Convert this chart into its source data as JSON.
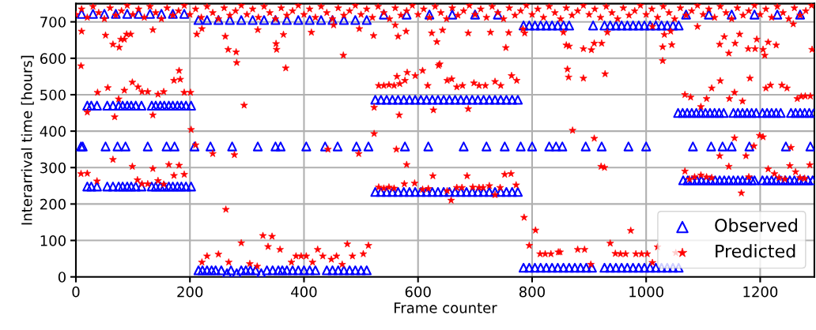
{
  "chart_data": {
    "type": "scatter",
    "xlabel": "Frame counter",
    "ylabel": "Interarrival time [hours]",
    "xlim": [
      0,
      1295
    ],
    "ylim": [
      0,
      750
    ],
    "xticks": [
      0,
      200,
      400,
      600,
      800,
      1000,
      1200
    ],
    "yticks": [
      0,
      100,
      200,
      300,
      400,
      500,
      600,
      700
    ],
    "grid": true,
    "legend": "bottom right",
    "series": [
      {
        "name": "Observed",
        "color": "#0000ff",
        "marker": "triangle",
        "x": [
          20,
          27,
          37,
          55,
          65,
          75,
          82,
          90,
          97,
          105,
          115,
          133,
          140,
          148,
          155,
          163,
          170,
          178,
          185,
          193,
          202,
          20,
          27,
          37,
          55,
          65,
          75,
          82,
          90,
          97,
          105,
          115,
          133,
          140,
          148,
          155,
          163,
          170,
          178,
          185,
          193,
          202,
          9,
          12,
          52,
          73,
          87,
          126,
          159,
          173,
          208,
          236,
          274,
          319,
          350,
          359,
          404,
          437,
          459,
          492,
          513,
          10,
          30,
          50,
          70,
          90,
          110,
          130,
          150,
          170,
          190,
          215,
          230,
          250,
          270,
          290,
          310,
          330,
          350,
          370,
          390,
          410,
          430,
          450,
          470,
          490,
          510,
          215,
          222,
          230,
          238,
          245,
          255,
          265,
          272,
          282,
          290,
          298,
          306,
          315,
          325,
          335,
          345,
          355,
          362,
          370,
          380,
          390,
          400,
          410,
          420,
          440,
          450,
          460,
          470,
          480,
          490,
          500,
          510,
          525,
          535,
          545,
          555,
          565,
          575,
          585,
          595,
          605,
          615,
          625,
          635,
          645,
          655,
          665,
          675,
          685,
          695,
          705,
          715,
          725,
          735,
          745,
          755,
          765,
          775,
          525,
          535,
          545,
          555,
          565,
          575,
          585,
          595,
          605,
          615,
          625,
          635,
          645,
          655,
          665,
          675,
          685,
          695,
          705,
          715,
          725,
          735,
          745,
          755,
          765,
          775,
          577,
          618,
          680,
          720,
          752,
          780,
          800,
          830,
          842,
          853,
          894,
          922,
          969,
          1000,
          540,
          580,
          620,
          660,
          700,
          740,
          785,
          795,
          805,
          815,
          825,
          835,
          845,
          855,
          865,
          907,
          927,
          937,
          947,
          957,
          967,
          977,
          987,
          997,
          1007,
          1017,
          1027,
          1037,
          1047,
          1057,
          785,
          795,
          805,
          815,
          825,
          835,
          845,
          855,
          865,
          875,
          885,
          895,
          905,
          927,
          937,
          947,
          957,
          967,
          977,
          987,
          997,
          1007,
          1017,
          1027,
          1037,
          1047,
          1057,
          1056,
          1064,
          1072,
          1080,
          1088,
          1096,
          1104,
          1112,
          1120,
          1128,
          1136,
          1153,
          1161,
          1169,
          1177,
          1185,
          1193,
          1204,
          1212,
          1220,
          1228,
          1236,
          1254,
          1262,
          1270,
          1278,
          1286,
          1294,
          1065,
          1073,
          1081,
          1089,
          1097,
          1105,
          1113,
          1121,
          1129,
          1137,
          1145,
          1153,
          1161,
          1169,
          1177,
          1185,
          1190,
          1204,
          1212,
          1220,
          1228,
          1236,
          1244,
          1252,
          1260,
          1268,
          1276,
          1284,
          1292,
          1082,
          1114,
          1134,
          1150,
          1181,
          1245,
          1288,
          1070,
          1110,
          1150,
          1190,
          1230,
          1270
        ],
        "values": [
          470,
          470,
          470,
          470,
          470,
          470,
          470,
          470,
          470,
          470,
          470,
          470,
          470,
          470,
          470,
          470,
          470,
          470,
          470,
          470,
          470,
          248,
          248,
          248,
          248,
          248,
          248,
          248,
          248,
          248,
          248,
          248,
          248,
          248,
          248,
          248,
          248,
          248,
          248,
          248,
          248,
          248,
          358,
          358,
          358,
          358,
          358,
          358,
          358,
          358,
          358,
          358,
          358,
          358,
          358,
          358,
          358,
          358,
          358,
          358,
          358,
          722,
          722,
          722,
          722,
          722,
          722,
          722,
          722,
          722,
          722,
          705,
          705,
          705,
          705,
          705,
          705,
          705,
          705,
          705,
          705,
          705,
          705,
          705,
          705,
          705,
          705,
          18,
          18,
          18,
          18,
          18,
          18,
          10,
          18,
          10,
          18,
          18,
          18,
          18,
          10,
          18,
          18,
          18,
          18,
          18,
          18,
          18,
          18,
          18,
          18,
          18,
          18,
          18,
          18,
          18,
          18,
          18,
          18,
          486,
          486,
          486,
          486,
          486,
          486,
          486,
          486,
          486,
          486,
          486,
          486,
          486,
          486,
          486,
          486,
          486,
          486,
          486,
          486,
          486,
          486,
          486,
          486,
          486,
          486,
          233,
          233,
          233,
          233,
          233,
          233,
          233,
          233,
          233,
          233,
          233,
          233,
          233,
          233,
          233,
          233,
          233,
          233,
          233,
          233,
          233,
          233,
          233,
          233,
          233,
          233,
          358,
          358,
          358,
          358,
          358,
          358,
          358,
          358,
          358,
          358,
          358,
          358,
          358,
          358,
          720,
          720,
          720,
          720,
          720,
          720,
          690,
          690,
          690,
          690,
          690,
          690,
          690,
          690,
          690,
          690,
          690,
          690,
          690,
          690,
          690,
          690,
          690,
          690,
          690,
          690,
          690,
          690,
          690,
          690,
          25,
          25,
          25,
          25,
          25,
          25,
          25,
          25,
          25,
          25,
          25,
          25,
          25,
          25,
          25,
          25,
          25,
          25,
          25,
          25,
          25,
          25,
          25,
          25,
          25,
          25,
          25,
          450,
          450,
          450,
          450,
          450,
          450,
          450,
          450,
          450,
          450,
          450,
          450,
          450,
          450,
          450,
          450,
          450,
          450,
          450,
          450,
          450,
          450,
          450,
          450,
          450,
          450,
          450,
          450,
          265,
          265,
          265,
          265,
          265,
          265,
          265,
          265,
          265,
          265,
          265,
          265,
          265,
          265,
          265,
          265,
          265,
          265,
          265,
          265,
          265,
          265,
          265,
          265,
          265,
          265,
          265,
          265,
          265,
          358,
          358,
          358,
          358,
          358,
          358,
          358,
          720,
          720,
          720,
          720,
          720,
          720
        ]
      },
      {
        "name": "Predicted",
        "color": "#ff0000",
        "marker": "star",
        "x": [
          0,
          10,
          20,
          30,
          40,
          50,
          60,
          70,
          80,
          90,
          100,
          110,
          120,
          130,
          140,
          150,
          160,
          170,
          180,
          190,
          200,
          210,
          220,
          230,
          240,
          250,
          260,
          270,
          280,
          290,
          300,
          310,
          320,
          330,
          340,
          350,
          360,
          370,
          380,
          390,
          400,
          410,
          420,
          430,
          440,
          450,
          460,
          470,
          480,
          490,
          500,
          510,
          520,
          530,
          540,
          550,
          560,
          570,
          580,
          590,
          600,
          610,
          620,
          630,
          640,
          650,
          660,
          670,
          680,
          690,
          700,
          710,
          720,
          730,
          740,
          750,
          760,
          770,
          780,
          790,
          800,
          810,
          820,
          830,
          840,
          850,
          860,
          870,
          880,
          890,
          900,
          910,
          920,
          930,
          940,
          950,
          960,
          970,
          980,
          990,
          1000,
          1010,
          1020,
          1030,
          1040,
          1050,
          1060,
          1070,
          1080,
          1090,
          1100,
          1110,
          1120,
          1130,
          1140,
          1150,
          1160,
          1170,
          1180,
          1190,
          1200,
          1210,
          1220,
          1230,
          1240,
          1250,
          1260,
          1270,
          1280,
          1290,
          10,
          9,
          9,
          20,
          20,
          38,
          37,
          56,
          68,
          65,
          75,
          85,
          99,
          99,
          109,
          108,
          116,
          116,
          126,
          126,
          135,
          135,
          144,
          144,
          154,
          154,
          163,
          172,
          172,
          181,
          181,
          183,
          190,
          190,
          201,
          202,
          210,
          240,
          263,
          267,
          262,
          281,
          282,
          278,
          295,
          290,
          268,
          250,
          230,
          221,
          305,
          318,
          328,
          337,
          344,
          358,
          351,
          352,
          368,
          364,
          378,
          386,
          395,
          404,
          415,
          319,
          135,
          52,
          65,
          76,
          79,
          85,
          89,
          96,
          212,
          221,
          413,
          469,
          522,
          565,
          579,
          560,
          497,
          452,
          424,
          433,
          448,
          457,
          467,
          476,
          485,
          504,
          513,
          442,
          496,
          523,
          523,
          531,
          540,
          549,
          558,
          563,
          568,
          577,
          581,
          595,
          608,
          617,
          627,
          567,
          636,
          638,
          651,
          659,
          668,
          678,
          688,
          698,
          707,
          718,
          735,
          745,
          754,
          764,
          773,
          759,
          727,
          688,
          643,
          633,
          624,
          531,
          540,
          549,
          558,
          562,
          580,
          576,
          594,
          608,
          618,
          626,
          651,
          658,
          668,
          677,
          686,
          696,
          707,
          714,
          725,
          735,
          744,
          752,
          763,
          772,
          786,
          806,
          795,
          814,
          823,
          833,
          846,
          787,
          784,
          855,
          860,
          865,
          890,
          904,
          909,
          922,
          932,
          862,
          864,
          890,
          928,
          871,
          909,
          921,
          927,
          849,
          880,
          892,
          903,
          937,
          946,
          955,
          964,
          973,
          982,
          992,
          1002,
          1011,
          1020,
          1034,
          1042,
          1052,
          1029,
          1029,
          1032,
          1045,
          1043,
          1011,
          1068,
          1078,
          1096,
          1106,
          1115,
          1130,
          1146,
          1155,
          1169,
          1182,
          1210,
          1218,
          1238,
          1247,
          1265,
          1272,
          1279,
          1288,
          1068,
          1076,
          1085,
          1096,
          1106,
          1115,
          1129,
          1145,
          1155,
          1167,
          1175,
          1180,
          1189,
          1199,
          1205,
          1214,
          1225,
          1233,
          1243,
          1252,
          1262,
          1270,
          1278,
          1287,
          1254,
          1129,
          1137,
          1145,
          1156,
          1164,
          1179,
          1191,
          1194,
          1205,
          1208,
          1214,
          1228,
          1258,
          1291,
          1090
        ],
        "values": [
          720,
          735,
          712,
          742,
          725,
          708,
          738,
          718,
          730,
          745,
          720,
          735,
          712,
          742,
          725,
          708,
          738,
          718,
          730,
          745,
          720,
          735,
          712,
          742,
          725,
          708,
          738,
          718,
          730,
          745,
          720,
          735,
          712,
          742,
          725,
          708,
          738,
          718,
          730,
          745,
          720,
          735,
          712,
          742,
          725,
          708,
          738,
          718,
          730,
          745,
          720,
          735,
          712,
          742,
          725,
          708,
          738,
          718,
          730,
          745,
          720,
          735,
          712,
          742,
          725,
          708,
          738,
          718,
          730,
          745,
          720,
          735,
          712,
          742,
          725,
          708,
          738,
          718,
          730,
          745,
          720,
          735,
          712,
          742,
          725,
          708,
          738,
          718,
          730,
          745,
          720,
          735,
          712,
          742,
          725,
          708,
          738,
          718,
          730,
          745,
          720,
          735,
          712,
          742,
          725,
          708,
          738,
          718,
          730,
          745,
          720,
          735,
          712,
          742,
          725,
          708,
          738,
          718,
          730,
          745,
          720,
          735,
          712,
          742,
          725,
          708,
          738,
          718,
          730,
          745,
          674,
          579,
          283,
          284,
          452,
          506,
          263,
          519,
          439,
          322,
          488,
          512,
          534,
          303,
          521,
          266,
          508,
          255,
          508,
          255,
          297,
          444,
          501,
          264,
          508,
          254,
          308,
          539,
          278,
          566,
          306,
          542,
          506,
          281,
          506,
          404,
          362,
          338,
          185,
          624,
          660,
          617,
          588,
          335,
          471,
          93,
          40,
          62,
          57,
          40,
          36,
          29,
          113,
          83,
          111,
          75,
          640,
          624,
          573,
          665,
          40,
          57,
          57,
          57,
          40,
          678,
          678,
          663,
          638,
          630,
          652,
          652,
          666,
          666,
          666,
          681,
          671,
          608,
          662,
          660,
          674,
          691,
          681,
          691,
          75,
          57,
          48,
          57,
          34,
          90,
          57,
          63,
          86,
          350,
          338,
          393,
          465,
          525,
          525,
          527,
          525,
          550,
          530,
          539,
          561,
          552,
          566,
          525,
          458,
          444,
          580,
          584,
          539,
          543,
          521,
          525,
          461,
          532,
          525,
          525,
          536,
          525,
          629,
          552,
          539,
          670,
          671,
          669,
          677,
          645,
          669,
          246,
          243,
          246,
          243,
          350,
          308,
          255,
          257,
          240,
          242,
          277,
          236,
          210,
          245,
          245,
          277,
          246,
          245,
          245,
          250,
          225,
          245,
          281,
          283,
          252,
          163,
          128,
          86,
          63,
          63,
          63,
          68,
          669,
          680,
          671,
          636,
          633,
          626,
          623,
          641,
          641,
          671,
          570,
          548,
          545,
          557,
          402,
          380,
          303,
          300,
          68,
          75,
          75,
          34,
          92,
          64,
          63,
          63,
          127,
          63,
          63,
          63,
          39,
          82,
          null,
          null,
          66,
          593,
          631,
          665,
          637,
          674,
          687,
          500,
          493,
          467,
          489,
          518,
          538,
          489,
          506,
          482,
          545,
          518,
          526,
          526,
          518,
          489,
          495,
          496,
          496,
          290,
          268,
          274,
          279,
          274,
          272,
          332,
          303,
          381,
          230,
          332,
          274,
          359,
          388,
          384,
          296,
          283,
          272,
          268,
          305,
          288,
          272,
          270,
          307,
          355,
          638,
          659,
          614,
          641,
          666,
          626,
          626,
          652,
          624,
          608,
          644,
          636,
          694,
          624,
          687
        ]
      }
    ]
  }
}
